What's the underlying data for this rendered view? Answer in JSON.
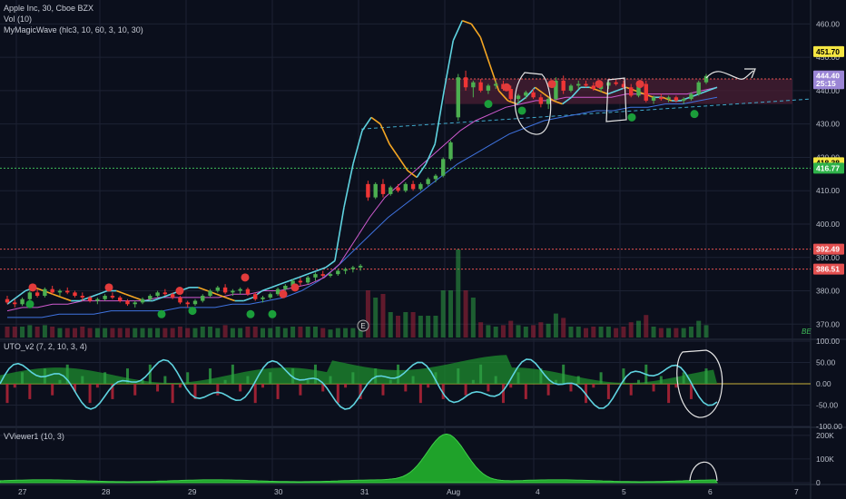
{
  "header": {
    "symbol_line": "Apple Inc, 30, Cboe BZX",
    "volume_label": "Vol (10)",
    "wave_label": "MyMagicWave (hlc3, 10, 60, 3, 10, 30)",
    "uto_label": "UTO_v2 (7, 2, 10, 3, 4)",
    "vviewer_label": "VViewer1 (10, 3)",
    "be_label": "BE",
    "earnings_marker": "E"
  },
  "colors": {
    "background": "#0b0f1c",
    "grid": "#1c2233",
    "up": "#26a69a",
    "candle_up": "#4caf50",
    "candle_down": "#ef3535",
    "wave_cyan": "#5fd3e0",
    "wave_orange": "#f5a623",
    "magenta": "#d05bd0",
    "blue": "#3f73e0",
    "sell_dot": "#e23b3b",
    "buy_dot": "#1b9e3a",
    "zone_fill": "#4a1f33",
    "annotation": "#e6e6e6",
    "volume_green": "#2ea043",
    "volume_red": "#a8243a"
  },
  "price_axis": {
    "ticks": [
      "460.00",
      "450.00",
      "440.00",
      "430.00",
      "420.00",
      "410.00",
      "400.00",
      "390.00",
      "380.00",
      "370.00"
    ]
  },
  "price_tags": [
    {
      "text": "451.70",
      "value": 451.7,
      "bg": "#f5e642",
      "fg": "#000000"
    },
    {
      "text": "444.40",
      "value": 444.4,
      "bg": "#9b86d6",
      "fg": "#ffffff"
    },
    {
      "text": "25:15",
      "value": 442.1,
      "bg": "#9b86d6",
      "fg": "#ffffff"
    },
    {
      "text": "418.38",
      "value": 418.38,
      "bg": "#f5e642",
      "fg": "#000000"
    },
    {
      "text": "416.77",
      "value": 416.77,
      "bg": "#2fb24a",
      "fg": "#ffffff"
    },
    {
      "text": "392.49",
      "value": 392.49,
      "bg": "#e35050",
      "fg": "#ffffff"
    },
    {
      "text": "386.51",
      "value": 386.51,
      "bg": "#e35050",
      "fg": "#ffffff"
    }
  ],
  "uto_axis": {
    "ticks": [
      "100.00",
      "50.00",
      "0.00",
      "-50.00",
      "-100.00"
    ]
  },
  "vviewer_axis": {
    "ticks": [
      "200K",
      "100K",
      "0"
    ]
  },
  "time_axis": {
    "ticks": [
      "27",
      "28",
      "29",
      "30",
      "31",
      "Aug",
      "4",
      "5",
      "6",
      "7"
    ]
  },
  "chart_data": {
    "type": "candlestick",
    "title": "Apple Inc, 30, Cboe BZX",
    "ylim": [
      366,
      465
    ],
    "x_dates": [
      "27",
      "28",
      "29",
      "30",
      "31",
      "Aug",
      "4",
      "5",
      "6",
      "7"
    ],
    "candles": [
      [
        377.5,
        378.5,
        376.0,
        376.5
      ],
      [
        376.5,
        377.5,
        375.0,
        376.0
      ],
      [
        376.0,
        378.0,
        375.5,
        377.5
      ],
      [
        377.5,
        380.0,
        377.0,
        379.5
      ],
      [
        379.5,
        380.5,
        378.0,
        378.5
      ],
      [
        378.5,
        381.0,
        378.0,
        380.5
      ],
      [
        380.5,
        381.5,
        379.0,
        379.5
      ],
      [
        379.5,
        380.5,
        378.5,
        380.0
      ],
      [
        380.0,
        381.0,
        379.0,
        379.5
      ],
      [
        379.5,
        380.0,
        378.0,
        378.5
      ],
      [
        378.5,
        379.5,
        377.0,
        378.0
      ],
      [
        378.0,
        378.5,
        376.5,
        377.0
      ],
      [
        377.0,
        378.0,
        376.0,
        377.5
      ],
      [
        377.5,
        379.0,
        377.0,
        378.5
      ],
      [
        378.5,
        379.5,
        377.5,
        378.0
      ],
      [
        378.0,
        378.5,
        376.5,
        377.0
      ],
      [
        377.0,
        377.5,
        375.5,
        376.0
      ],
      [
        376.0,
        377.0,
        375.0,
        376.5
      ],
      [
        376.5,
        378.0,
        376.0,
        377.5
      ],
      [
        377.5,
        379.0,
        377.0,
        378.5
      ],
      [
        378.5,
        380.0,
        378.0,
        379.5
      ],
      [
        379.5,
        380.5,
        378.5,
        379.0
      ],
      [
        379.0,
        379.5,
        377.5,
        378.0
      ],
      [
        378.0,
        378.5,
        376.0,
        376.5
      ],
      [
        376.5,
        377.0,
        375.0,
        376.0
      ],
      [
        376.0,
        377.5,
        375.5,
        377.0
      ],
      [
        377.0,
        379.0,
        376.5,
        378.5
      ],
      [
        378.5,
        380.5,
        378.0,
        380.0
      ],
      [
        380.0,
        381.5,
        379.5,
        381.0
      ],
      [
        381.0,
        382.0,
        379.0,
        379.5
      ],
      [
        379.5,
        380.5,
        378.5,
        380.0
      ],
      [
        380.0,
        381.0,
        379.0,
        380.5
      ],
      [
        380.5,
        381.0,
        378.5,
        379.0
      ],
      [
        379.0,
        379.5,
        377.0,
        377.5
      ],
      [
        377.5,
        378.5,
        376.5,
        378.0
      ],
      [
        378.0,
        379.5,
        377.5,
        379.0
      ],
      [
        379.0,
        381.0,
        378.5,
        380.5
      ],
      [
        380.5,
        382.0,
        380.0,
        381.5
      ],
      [
        381.5,
        383.5,
        381.0,
        383.0
      ],
      [
        383.0,
        384.0,
        381.5,
        382.5
      ],
      [
        382.5,
        384.5,
        382.0,
        384.0
      ],
      [
        384.0,
        385.5,
        383.0,
        385.0
      ],
      [
        385.0,
        386.0,
        384.0,
        384.5
      ],
      [
        384.5,
        385.5,
        384.0,
        385.0
      ],
      [
        385.0,
        386.5,
        384.5,
        386.0
      ],
      [
        386.0,
        387.0,
        385.0,
        386.5
      ],
      [
        386.5,
        387.5,
        385.5,
        387.0
      ],
      [
        387.0,
        388.0,
        386.0,
        387.5
      ],
      [
        412.0,
        413.0,
        407.0,
        408.0
      ],
      [
        408.0,
        412.5,
        407.5,
        412.0
      ],
      [
        412.0,
        413.5,
        408.0,
        409.0
      ],
      [
        409.0,
        411.5,
        408.5,
        411.0
      ],
      [
        411.0,
        412.0,
        409.5,
        410.0
      ],
      [
        410.0,
        412.5,
        409.5,
        412.0
      ],
      [
        412.0,
        413.0,
        410.0,
        410.5
      ],
      [
        410.5,
        412.5,
        410.0,
        412.0
      ],
      [
        412.0,
        414.0,
        411.5,
        413.5
      ],
      [
        413.5,
        415.0,
        412.5,
        414.5
      ],
      [
        414.5,
        420.0,
        414.0,
        419.5
      ],
      [
        419.5,
        425.0,
        419.0,
        424.5
      ],
      [
        432.0,
        445.0,
        431.0,
        444.0
      ],
      [
        444.0,
        446.0,
        440.0,
        441.0
      ],
      [
        441.0,
        443.0,
        438.0,
        442.5
      ],
      [
        442.5,
        443.5,
        439.5,
        440.0
      ],
      [
        440.0,
        442.0,
        439.0,
        441.5
      ],
      [
        441.5,
        443.0,
        440.5,
        442.0
      ],
      [
        442.0,
        443.0,
        440.0,
        440.5
      ],
      [
        440.5,
        441.5,
        437.0,
        437.5
      ],
      [
        437.5,
        439.0,
        436.0,
        438.5
      ],
      [
        438.5,
        440.0,
        437.5,
        439.5
      ],
      [
        439.5,
        440.5,
        437.5,
        438.0
      ],
      [
        438.0,
        439.0,
        435.0,
        436.0
      ],
      [
        436.0,
        438.0,
        434.5,
        437.5
      ],
      [
        437.5,
        444.0,
        437.0,
        443.0
      ],
      [
        443.0,
        444.5,
        439.0,
        440.0
      ],
      [
        440.0,
        442.0,
        439.5,
        441.5
      ],
      [
        441.5,
        443.0,
        440.5,
        442.0
      ],
      [
        442.0,
        443.0,
        441.0,
        441.5
      ],
      [
        441.5,
        442.5,
        440.0,
        440.5
      ],
      [
        440.5,
        442.0,
        439.5,
        441.5
      ],
      [
        441.5,
        443.0,
        440.5,
        442.5
      ],
      [
        442.5,
        443.5,
        441.5,
        442.0
      ],
      [
        442.0,
        443.0,
        440.5,
        441.0
      ],
      [
        441.0,
        442.0,
        438.0,
        438.5
      ],
      [
        438.5,
        442.5,
        438.0,
        442.0
      ],
      [
        442.0,
        443.0,
        436.5,
        437.0
      ],
      [
        437.0,
        438.5,
        436.0,
        438.0
      ],
      [
        438.0,
        439.0,
        437.0,
        437.5
      ],
      [
        437.5,
        438.5,
        436.5,
        438.0
      ],
      [
        438.0,
        438.5,
        436.5,
        437.0
      ],
      [
        437.0,
        438.0,
        436.0,
        437.5
      ],
      [
        437.5,
        439.5,
        437.0,
        439.0
      ],
      [
        439.0,
        443.0,
        438.5,
        442.5
      ],
      [
        442.5,
        445.0,
        442.0,
        444.4
      ]
    ],
    "wave_line": [
      376,
      378,
      380,
      381,
      380,
      379,
      378,
      377,
      377,
      378,
      379,
      380,
      380,
      379,
      378,
      377,
      377,
      378,
      379,
      380,
      381,
      381,
      380,
      379,
      378,
      377,
      377,
      378,
      380,
      381,
      382,
      383,
      384,
      385,
      386,
      387,
      389,
      405,
      418,
      428,
      432,
      430,
      424,
      420,
      416,
      414,
      418,
      424,
      440,
      455,
      461,
      460,
      456,
      448,
      440,
      437,
      436,
      438,
      441,
      439,
      437,
      436,
      438,
      441,
      441,
      440,
      439,
      440,
      441,
      440,
      439,
      438,
      438,
      437,
      437,
      438,
      439,
      440,
      441
    ],
    "ma_magenta": [
      374,
      375,
      375,
      376,
      376,
      377,
      377,
      377,
      377,
      377,
      378,
      378,
      378,
      378,
      378,
      379,
      379,
      380,
      380,
      381,
      382,
      384,
      388,
      395,
      402,
      408,
      412,
      416,
      420,
      424,
      428,
      431,
      433,
      435,
      436,
      437,
      437,
      438,
      438,
      438,
      438,
      439,
      439,
      439,
      439,
      439,
      440,
      441
    ],
    "ma_blue": [
      372,
      372,
      372,
      373,
      373,
      373,
      374,
      374,
      374,
      374,
      375,
      375,
      375,
      376,
      376,
      377,
      378,
      380,
      383,
      387,
      392,
      397,
      402,
      406,
      410,
      414,
      418,
      421,
      424,
      427,
      429,
      431,
      432,
      433,
      434,
      434,
      435,
      435,
      436,
      436,
      437,
      438
    ],
    "levels": [
      {
        "value": 392.49,
        "style": "dotted",
        "color": "#e35050"
      },
      {
        "value": 386.51,
        "style": "dotted",
        "color": "#e35050"
      },
      {
        "value": 416.77,
        "style": "dotted",
        "color": "#3fbf5a"
      }
    ],
    "zone": {
      "from_value": 436.0,
      "to_value": 443.5
    },
    "uto_ylim": [
      -100,
      100
    ],
    "vviewer_ylim": [
      0,
      230000
    ],
    "vviewer_peak": 200000
  }
}
